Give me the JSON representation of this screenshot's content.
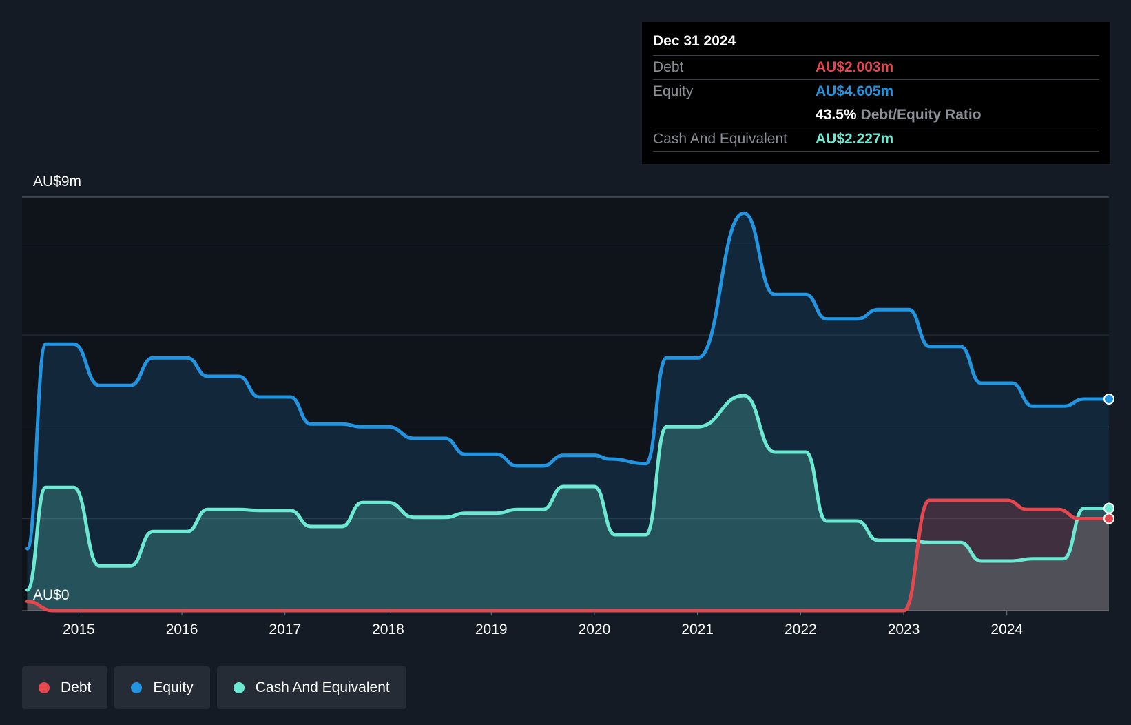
{
  "tooltip": {
    "date": "Dec 31 2024",
    "debt_label": "Debt",
    "debt_value": "AU$2.003m",
    "equity_label": "Equity",
    "equity_value": "AU$4.605m",
    "ratio_value": "43.5%",
    "ratio_label": "Debt/Equity Ratio",
    "cash_label": "Cash And Equivalent",
    "cash_value": "AU$2.227m"
  },
  "colors": {
    "debt": "#e5474f",
    "equity": "#2394df",
    "cash": "#6de8d2",
    "background": "#151b24",
    "plot_background": "#0f141b",
    "grid": "#2c333d"
  },
  "legend": [
    {
      "label": "Debt",
      "color": "#e5474f"
    },
    {
      "label": "Equity",
      "color": "#2394df"
    },
    {
      "label": "Cash And Equivalent",
      "color": "#6de8d2"
    }
  ],
  "chart_data": {
    "type": "area",
    "title": "",
    "ylabel": "",
    "xlabel": "",
    "y_top_label": "AU$9m",
    "y_bottom_label": "AU$0",
    "ylim": [
      0,
      9
    ],
    "xlim": [
      2014.45,
      2024.99
    ],
    "x_ticks": [
      "2015",
      "2016",
      "2017",
      "2018",
      "2019",
      "2020",
      "2021",
      "2022",
      "2023",
      "2024"
    ],
    "grid": true,
    "series": [
      {
        "name": "Equity",
        "points": [
          [
            2014.5,
            1.35
          ],
          [
            2014.68,
            5.8
          ],
          [
            2014.95,
            5.8
          ],
          [
            2015.2,
            4.9
          ],
          [
            2015.5,
            4.9
          ],
          [
            2015.72,
            5.5
          ],
          [
            2016.05,
            5.5
          ],
          [
            2016.25,
            5.1
          ],
          [
            2016.55,
            5.1
          ],
          [
            2016.75,
            4.65
          ],
          [
            2017.05,
            4.65
          ],
          [
            2017.25,
            4.06
          ],
          [
            2017.55,
            4.06
          ],
          [
            2017.75,
            4.0
          ],
          [
            2018.0,
            4.0
          ],
          [
            2018.25,
            3.75
          ],
          [
            2018.55,
            3.75
          ],
          [
            2018.75,
            3.4
          ],
          [
            2019.05,
            3.4
          ],
          [
            2019.25,
            3.15
          ],
          [
            2019.5,
            3.15
          ],
          [
            2019.7,
            3.38
          ],
          [
            2020.0,
            3.38
          ],
          [
            2020.15,
            3.3
          ],
          [
            2020.5,
            3.2
          ],
          [
            2020.7,
            5.5
          ],
          [
            2021.0,
            5.5
          ],
          [
            2021.45,
            8.65
          ],
          [
            2021.75,
            6.88
          ],
          [
            2022.05,
            6.88
          ],
          [
            2022.25,
            6.35
          ],
          [
            2022.55,
            6.35
          ],
          [
            2022.75,
            6.55
          ],
          [
            2023.05,
            6.55
          ],
          [
            2023.25,
            5.75
          ],
          [
            2023.55,
            5.75
          ],
          [
            2023.75,
            4.95
          ],
          [
            2024.05,
            4.95
          ],
          [
            2024.25,
            4.45
          ],
          [
            2024.55,
            4.45
          ],
          [
            2024.75,
            4.605
          ],
          [
            2024.99,
            4.605
          ]
        ]
      },
      {
        "name": "Cash And Equivalent",
        "points": [
          [
            2014.5,
            0.45
          ],
          [
            2014.68,
            2.68
          ],
          [
            2014.95,
            2.68
          ],
          [
            2015.2,
            0.97
          ],
          [
            2015.5,
            0.97
          ],
          [
            2015.72,
            1.72
          ],
          [
            2016.05,
            1.72
          ],
          [
            2016.25,
            2.2
          ],
          [
            2016.55,
            2.2
          ],
          [
            2016.75,
            2.18
          ],
          [
            2017.05,
            2.18
          ],
          [
            2017.25,
            1.83
          ],
          [
            2017.55,
            1.83
          ],
          [
            2017.75,
            2.35
          ],
          [
            2018.0,
            2.35
          ],
          [
            2018.25,
            2.03
          ],
          [
            2018.55,
            2.03
          ],
          [
            2018.75,
            2.12
          ],
          [
            2019.05,
            2.12
          ],
          [
            2019.25,
            2.2
          ],
          [
            2019.5,
            2.2
          ],
          [
            2019.7,
            2.7
          ],
          [
            2020.0,
            2.7
          ],
          [
            2020.2,
            1.65
          ],
          [
            2020.5,
            1.65
          ],
          [
            2020.7,
            4.0
          ],
          [
            2021.0,
            4.0
          ],
          [
            2021.45,
            4.68
          ],
          [
            2021.75,
            3.45
          ],
          [
            2022.05,
            3.45
          ],
          [
            2022.25,
            1.95
          ],
          [
            2022.55,
            1.95
          ],
          [
            2022.75,
            1.53
          ],
          [
            2023.05,
            1.53
          ],
          [
            2023.25,
            1.48
          ],
          [
            2023.55,
            1.48
          ],
          [
            2023.75,
            1.08
          ],
          [
            2024.05,
            1.08
          ],
          [
            2024.25,
            1.13
          ],
          [
            2024.55,
            1.13
          ],
          [
            2024.75,
            2.227
          ],
          [
            2024.99,
            2.227
          ]
        ]
      },
      {
        "name": "Debt",
        "points": [
          [
            2014.5,
            0.2
          ],
          [
            2014.75,
            0.0
          ],
          [
            2023.0,
            0.0
          ],
          [
            2023.25,
            2.4
          ],
          [
            2024.0,
            2.4
          ],
          [
            2024.2,
            2.2
          ],
          [
            2024.5,
            2.2
          ],
          [
            2024.7,
            2.003
          ],
          [
            2024.99,
            2.003
          ]
        ]
      }
    ]
  }
}
